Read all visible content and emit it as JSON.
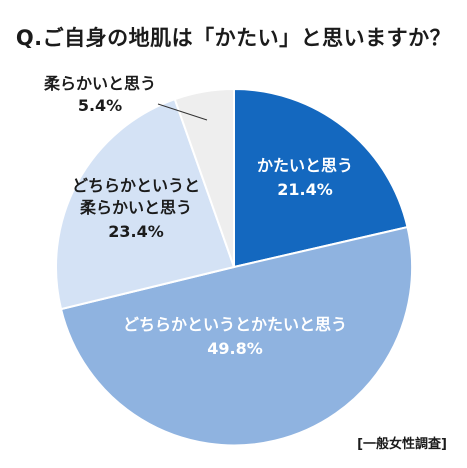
{
  "title": "Q.ご自身の地肌は「かたい」と思いますか？",
  "source_note": "[一般女性調査]",
  "chart_data": {
    "type": "pie",
    "title": "Q.ご自身の地肌は「かたい」と思いますか？",
    "start_angle_deg": 0,
    "direction": "clockwise",
    "slices": [
      {
        "label_lines": [
          "かたいと思う"
        ],
        "value": 21.4,
        "value_label": "21.4%",
        "color": "#1468bf",
        "text_color": "#ffffff"
      },
      {
        "label_lines": [
          "どちらかというとかたいと思う"
        ],
        "value": 49.8,
        "value_label": "49.8%",
        "color": "#8fb3e0",
        "text_color": "#ffffff"
      },
      {
        "label_lines": [
          "どちらかというと",
          "柔らかいと思う"
        ],
        "value": 23.4,
        "value_label": "23.4%",
        "color": "#d4e2f5",
        "text_color": "#1b1b1b"
      },
      {
        "label_lines": [
          "柔らかいと思う"
        ],
        "value": 5.4,
        "value_label": "5.4%",
        "color": "#eeeeee",
        "text_color": "#1b1b1b"
      }
    ]
  }
}
